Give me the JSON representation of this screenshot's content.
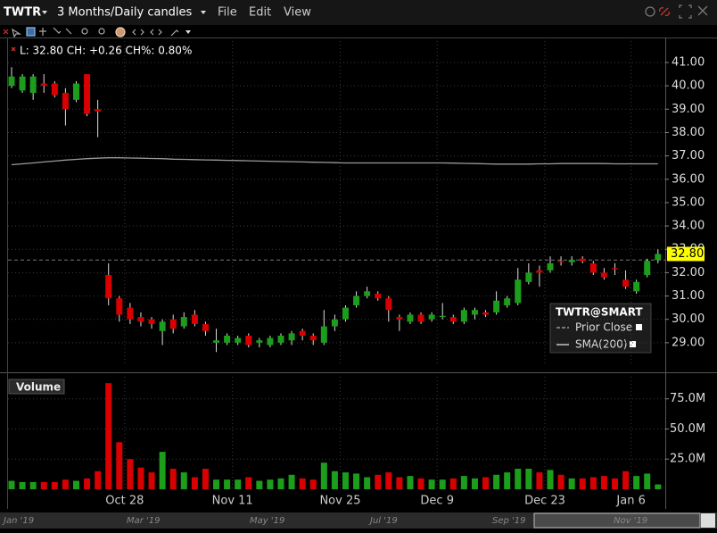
{
  "app": {
    "symbol": "TWTR",
    "period": "3 Months/Daily candles",
    "menu": [
      "File",
      "Edit",
      "View"
    ],
    "navigator": [
      "Jan '19",
      "Mar '19",
      "May '19",
      "Jul '19",
      "Sep '19",
      "Nov '19"
    ]
  },
  "chart_data": [
    {
      "type": "candlestick",
      "info": "L: 32.80 CH: +0.26 CH%: 0.80%",
      "legend_title": "TWTR@SMART",
      "categories": [
        null,
        null,
        null,
        null,
        null,
        null,
        null,
        null,
        null,
        null,
        null,
        "Oct 28",
        null,
        null,
        null,
        null,
        null,
        null,
        null,
        null,
        null,
        "Nov 11",
        null,
        null,
        null,
        null,
        null,
        null,
        null,
        null,
        null,
        "Nov 25",
        null,
        null,
        null,
        null,
        null,
        null,
        null,
        null,
        "Dec 9",
        null,
        null,
        null,
        null,
        null,
        null,
        null,
        null,
        null,
        "Dec 23",
        null,
        null,
        null,
        null,
        null,
        null,
        null,
        "Jan 6",
        null,
        null
      ],
      "open": [
        40.0,
        39.8,
        39.7,
        40.1,
        40.1,
        39.7,
        39.4,
        40.5,
        39.0,
        31.9,
        30.9,
        30.5,
        30.1,
        30.0,
        29.5,
        30.0,
        29.7,
        30.2,
        29.8,
        29.0,
        29.0,
        29.0,
        29.3,
        29.0,
        28.9,
        29.0,
        29.1,
        29.5,
        29.3,
        29.0,
        29.7,
        30.0,
        30.6,
        31.0,
        31.1,
        30.9,
        30.1,
        29.9,
        30.2,
        30.0,
        30.1,
        30.1,
        29.9,
        30.2,
        30.3,
        30.3,
        30.6,
        30.7,
        31.6,
        32.1,
        32.1,
        32.5,
        32.45,
        32.6,
        32.4,
        32.0,
        32.2,
        31.7,
        31.2,
        31.9,
        32.54
      ],
      "high": [
        40.8,
        40.5,
        40.5,
        40.5,
        40.2,
        39.9,
        40.2,
        40.5,
        39.4,
        32.4,
        31.0,
        30.7,
        30.3,
        30.1,
        30.0,
        30.2,
        30.3,
        30.4,
        29.9,
        29.6,
        29.4,
        29.3,
        29.4,
        29.2,
        29.3,
        29.4,
        29.5,
        29.6,
        29.4,
        30.4,
        30.2,
        30.6,
        31.2,
        31.4,
        31.2,
        31.0,
        30.2,
        30.3,
        30.3,
        30.3,
        30.7,
        30.2,
        30.5,
        30.5,
        30.4,
        31.2,
        31.0,
        32.2,
        32.4,
        32.3,
        32.7,
        32.7,
        32.7,
        32.7,
        32.5,
        32.2,
        32.4,
        32.1,
        31.7,
        32.6,
        33.0
      ],
      "low": [
        39.9,
        39.7,
        39.4,
        39.7,
        39.5,
        38.3,
        39.3,
        38.7,
        37.8,
        30.6,
        29.9,
        29.8,
        29.7,
        29.6,
        28.9,
        29.4,
        29.6,
        29.7,
        29.3,
        28.6,
        28.9,
        28.9,
        28.8,
        28.8,
        28.8,
        28.9,
        28.9,
        29.1,
        28.9,
        28.9,
        29.5,
        29.9,
        30.5,
        30.9,
        30.8,
        29.9,
        29.5,
        29.8,
        29.8,
        29.9,
        30.0,
        29.8,
        29.8,
        30.0,
        30.1,
        30.2,
        30.5,
        30.6,
        31.5,
        31.4,
        32.0,
        32.3,
        32.3,
        32.4,
        31.9,
        31.7,
        31.9,
        31.3,
        31.1,
        31.8,
        32.4
      ],
      "close": [
        40.4,
        40.4,
        40.4,
        40.0,
        39.6,
        39.0,
        40.1,
        38.8,
        38.9,
        30.9,
        30.2,
        30.0,
        29.9,
        29.8,
        29.9,
        29.6,
        30.1,
        29.8,
        29.5,
        29.1,
        29.3,
        29.2,
        28.9,
        29.1,
        29.2,
        29.3,
        29.4,
        29.3,
        29.1,
        29.7,
        30.0,
        30.5,
        31.0,
        31.2,
        30.9,
        30.4,
        30.0,
        30.2,
        29.9,
        30.2,
        30.15,
        29.9,
        30.4,
        30.4,
        30.2,
        30.8,
        30.9,
        31.7,
        32.0,
        32.0,
        32.4,
        32.45,
        32.55,
        32.5,
        32.0,
        31.8,
        32.15,
        31.4,
        31.6,
        32.5,
        32.8
      ],
      "up_color": "#1c9e1c",
      "down_color": "#d80000",
      "sma": {
        "name": "SMA(200)",
        "color": "#9a9a9a",
        "values": [
          36.62,
          36.66,
          36.7,
          36.74,
          36.78,
          36.82,
          36.85,
          36.88,
          36.9,
          36.92,
          36.92,
          36.91,
          36.9,
          36.89,
          36.88,
          36.86,
          36.85,
          36.84,
          36.83,
          36.82,
          36.81,
          36.8,
          36.79,
          36.78,
          36.77,
          36.76,
          36.75,
          36.74,
          36.73,
          36.72,
          36.71,
          36.7,
          36.7,
          36.7,
          36.7,
          36.7,
          36.7,
          36.7,
          36.7,
          36.7,
          36.7,
          36.69,
          36.68,
          36.67,
          36.66,
          36.65,
          36.65,
          36.65,
          36.65,
          36.66,
          36.66,
          36.67,
          36.67,
          36.67,
          36.67,
          36.67,
          36.66,
          36.66,
          36.66,
          36.66,
          36.66
        ]
      },
      "prior_close": {
        "name": "Prior Close",
        "color": "#777777",
        "value": 32.54
      },
      "last": {
        "value": 32.8,
        "label": "32.80"
      },
      "ylim": [
        28.0,
        42.07
      ],
      "yticks": [
        {
          "value": 29,
          "label": "29.00"
        },
        {
          "value": 30,
          "label": "30.00"
        },
        {
          "value": 31,
          "label": "31.00"
        },
        {
          "value": 32,
          "label": "32.00"
        },
        {
          "value": 33,
          "label": "33.00"
        },
        {
          "value": 34,
          "label": "34.00"
        },
        {
          "value": 35,
          "label": "35.00"
        },
        {
          "value": 36,
          "label": "36.00"
        },
        {
          "value": 37,
          "label": "37.00"
        },
        {
          "value": 38,
          "label": "38.00"
        },
        {
          "value": 39,
          "label": "39.00"
        },
        {
          "value": 40,
          "label": "40.00"
        },
        {
          "value": 41,
          "label": "41.00"
        }
      ],
      "grid": true
    },
    {
      "type": "bar",
      "title": "Volume",
      "values": [
        7,
        6,
        6,
        6,
        6,
        8,
        7,
        9,
        15,
        88,
        39,
        25,
        18,
        14,
        31,
        17,
        14,
        10,
        17,
        8,
        8,
        8,
        10,
        7,
        8,
        9,
        12,
        9,
        8,
        22,
        15,
        14,
        13,
        10,
        12,
        14,
        10,
        11,
        9,
        8,
        8,
        9,
        11,
        9,
        10,
        12,
        14,
        17,
        17,
        14,
        16,
        12,
        9,
        9,
        10,
        11,
        9,
        15,
        11,
        13,
        4
      ],
      "ylim": [
        0,
        93.3
      ],
      "yticks": [
        {
          "value": 25,
          "label": "25.0M"
        },
        {
          "value": 50,
          "label": "50.0M"
        },
        {
          "value": 75,
          "label": "75.0M"
        }
      ],
      "grid": true
    }
  ]
}
